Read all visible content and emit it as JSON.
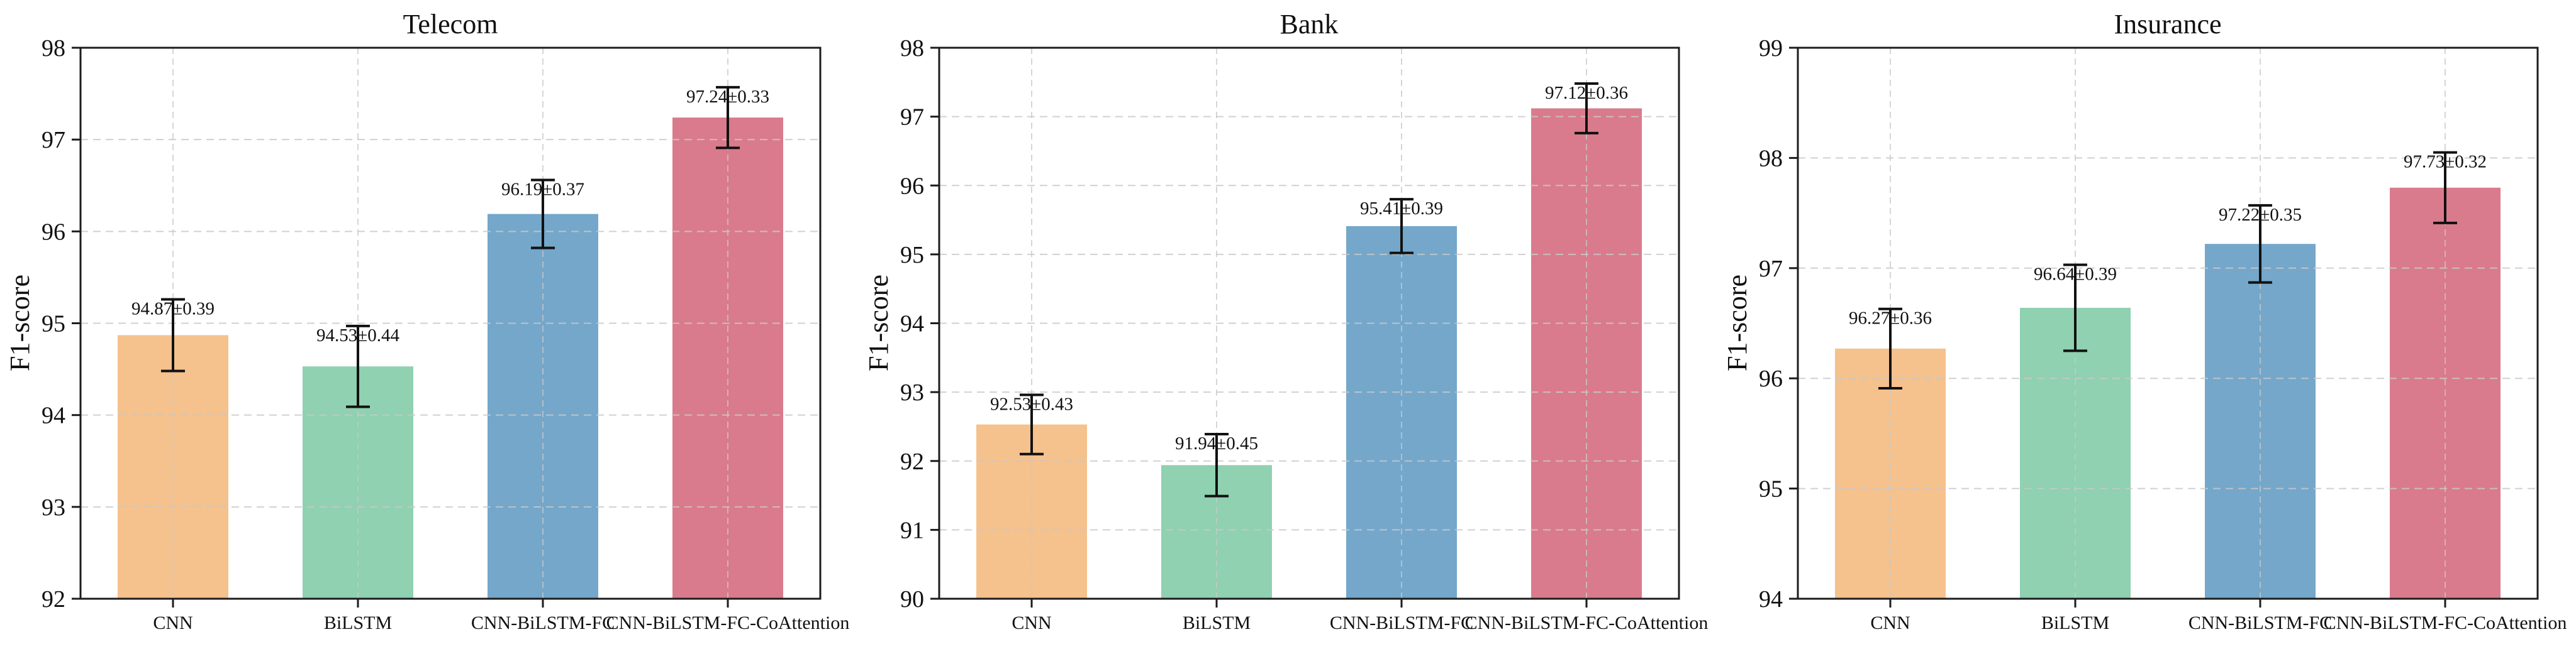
{
  "figure": {
    "background_color": "#ffffff",
    "axis_color": "#1c1c1c",
    "grid_color": "#c9c9c9",
    "error_bar_color": "#111111",
    "text_color": "#111111"
  },
  "chart_data": [
    {
      "type": "bar",
      "title": "Telecom",
      "xlabel": "",
      "ylabel": "F1-score",
      "categories": [
        "CNN",
        "BiLSTM",
        "CNN-BiLSTM-FC",
        "CNN-BiLSTM-FC-CoAttention"
      ],
      "values": [
        94.87,
        94.53,
        96.19,
        97.24
      ],
      "errors": [
        0.39,
        0.44,
        0.37,
        0.33
      ],
      "value_labels": [
        "94.87±0.39",
        "94.53±0.44",
        "96.19±0.37",
        "97.24±0.33"
      ],
      "ylim": [
        92,
        98
      ],
      "yticks": [
        92,
        93,
        94,
        95,
        96,
        97,
        98
      ],
      "bar_colors": [
        "#F5C18C",
        "#8FD1B0",
        "#74A7CA",
        "#D97B8C"
      ],
      "grid": "dashed",
      "legend": "none"
    },
    {
      "type": "bar",
      "title": "Bank",
      "xlabel": "",
      "ylabel": "F1-score",
      "categories": [
        "CNN",
        "BiLSTM",
        "CNN-BiLSTM-FC",
        "CNN-BiLSTM-FC-CoAttention"
      ],
      "values": [
        92.53,
        91.94,
        95.41,
        97.12
      ],
      "errors": [
        0.43,
        0.45,
        0.39,
        0.36
      ],
      "value_labels": [
        "92.53±0.43",
        "91.94±0.45",
        "95.41±0.39",
        "97.12±0.36"
      ],
      "ylim": [
        90,
        98
      ],
      "yticks": [
        90,
        91,
        92,
        93,
        94,
        95,
        96,
        97,
        98
      ],
      "bar_colors": [
        "#F5C18C",
        "#8FD1B0",
        "#74A7CA",
        "#D97B8C"
      ],
      "grid": "dashed",
      "legend": "none"
    },
    {
      "type": "bar",
      "title": "Insurance",
      "xlabel": "",
      "ylabel": "F1-score",
      "categories": [
        "CNN",
        "BiLSTM",
        "CNN-BiLSTM-FC",
        "CNN-BiLSTM-FC-CoAttention"
      ],
      "values": [
        96.27,
        96.64,
        97.22,
        97.73
      ],
      "errors": [
        0.36,
        0.39,
        0.35,
        0.32
      ],
      "value_labels": [
        "96.27±0.36",
        "96.64±0.39",
        "97.22±0.35",
        "97.73±0.32"
      ],
      "ylim": [
        94,
        99
      ],
      "yticks": [
        94,
        95,
        96,
        97,
        98,
        99
      ],
      "bar_colors": [
        "#F5C18C",
        "#8FD1B0",
        "#74A7CA",
        "#D97B8C"
      ],
      "grid": "dashed",
      "legend": "none"
    }
  ]
}
